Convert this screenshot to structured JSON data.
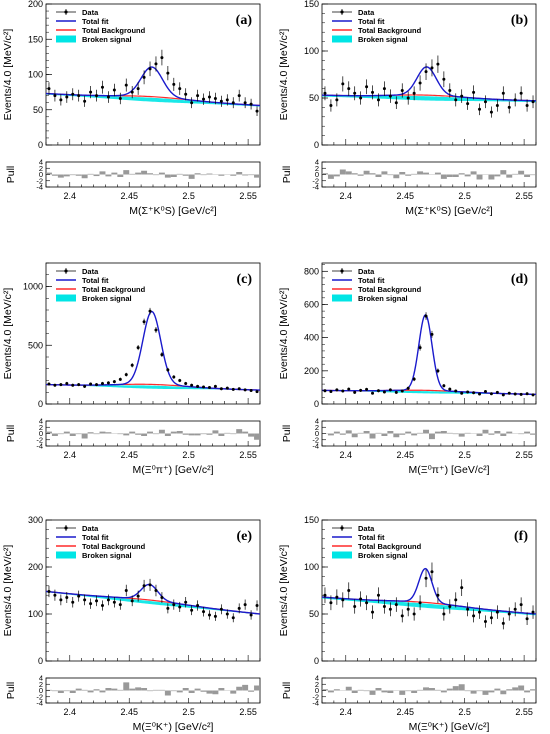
{
  "legend_entries": [
    "Data",
    "Total fit",
    "Total Background",
    "Broken signal"
  ],
  "colors": {
    "data": "#000000",
    "total_fit": "#1a1acc",
    "total_background": "#ff2a2a",
    "broken_signal": "#00e5e5",
    "pull_bars": "#999999"
  },
  "chart_data": [
    {
      "type": "line",
      "panel_label": "(a)",
      "xlabel": "M(Σ⁺K⁰S) [GeV/c²]",
      "ylabel": "Events/4.0 [MeV/c²]",
      "pull_label": "Pull",
      "xlim": [
        2.38,
        2.56
      ],
      "ylim": [
        0,
        200
      ],
      "xticks": [
        "2.4",
        "2.45",
        "2.5",
        "2.55"
      ],
      "yticks": [
        "0",
        "50",
        "100",
        "150",
        "200"
      ],
      "pull_ylim": [
        -4,
        4
      ],
      "pull_yticks": [
        "-4",
        "-2",
        "0",
        "2",
        "4"
      ],
      "peak": {
        "mean": 2.469,
        "sigma": 0.009,
        "amplitude": 42
      },
      "background": {
        "start": 73,
        "end": 56
      },
      "broken_signal_height": 4,
      "data_y": [
        80,
        70,
        64,
        68,
        72,
        70,
        62,
        75,
        70,
        82,
        68,
        78,
        66,
        85,
        75,
        80,
        96,
        108,
        115,
        124,
        102,
        86,
        80,
        72,
        60,
        70,
        65,
        68,
        66,
        62,
        64,
        60,
        70,
        60,
        58,
        48
      ],
      "pulls": [
        0.6,
        -0.4,
        -1.0,
        -0.6,
        -0.2,
        -0.4,
        -1.2,
        0.2,
        -0.5,
        1.0,
        -0.6,
        0.6,
        -0.8,
        1.4,
        0.2,
        0.6,
        1.2,
        0.4,
        -0.2,
        0.6,
        -1.0,
        -0.8,
        0.2,
        -0.4,
        -1.4,
        0.4,
        -0.2,
        0.3,
        0.1,
        -0.4,
        0.0,
        -0.4,
        0.8,
        -0.3,
        -0.2,
        -1.0
      ]
    },
    {
      "type": "line",
      "panel_label": "(b)",
      "xlabel": "M(Σ⁺K⁰S) [GeV/c²]",
      "ylabel": "Events/4.0 [MeV/c²]",
      "pull_label": "Pull",
      "xlim": [
        2.38,
        2.56
      ],
      "ylim": [
        0,
        150
      ],
      "xticks": [
        "2.4",
        "2.45",
        "2.5",
        "2.55"
      ],
      "yticks": [
        "0",
        "50",
        "100",
        "150"
      ],
      "pull_ylim": [
        -4,
        4
      ],
      "pull_yticks": [
        "-4",
        "-2",
        "0",
        "2",
        "4"
      ],
      "peak": {
        "mean": 2.468,
        "sigma": 0.008,
        "amplitude": 30
      },
      "background": {
        "start": 53,
        "end": 47
      },
      "broken_signal_height": 3,
      "data_y": [
        55,
        42,
        48,
        65,
        60,
        55,
        50,
        62,
        56,
        48,
        60,
        52,
        45,
        58,
        50,
        55,
        66,
        78,
        82,
        86,
        70,
        58,
        48,
        52,
        44,
        56,
        38,
        46,
        35,
        42,
        55,
        40,
        48,
        55,
        42,
        46
      ],
      "pulls": [
        0.4,
        -1.4,
        -0.6,
        1.6,
        1.0,
        0.4,
        -0.4,
        1.2,
        0.4,
        -0.8,
        1.0,
        -0.2,
        -1.2,
        0.8,
        -0.4,
        0.2,
        1.0,
        0.6,
        0.0,
        0.6,
        -1.4,
        -0.8,
        -0.8,
        0.4,
        -0.6,
        1.0,
        -1.6,
        0.0,
        -1.6,
        -0.6,
        1.4,
        -1.0,
        0.2,
        1.2,
        -0.8,
        -0.2
      ]
    },
    {
      "type": "line",
      "panel_label": "(c)",
      "xlabel": "M(Ξ⁰π⁺) [GeV/c²]",
      "ylabel": "Events/4.0 [MeV/c²]",
      "pull_label": "Pull",
      "xlim": [
        2.38,
        2.56
      ],
      "ylim": [
        0,
        1200
      ],
      "xticks": [
        "2.4",
        "2.45",
        "2.5",
        "2.55"
      ],
      "yticks": [
        "0",
        "500",
        "1000"
      ],
      "pull_ylim": [
        -4,
        4
      ],
      "pull_yticks": [
        "-4",
        "-2",
        "0",
        "2",
        "4"
      ],
      "peak": {
        "mean": 2.469,
        "sigma": 0.0075,
        "amplitude": 620
      },
      "background": {
        "start": 165,
        "end": 118
      },
      "broken_signal_height": 25,
      "data_y": [
        170,
        160,
        165,
        175,
        160,
        165,
        150,
        170,
        165,
        175,
        180,
        190,
        210,
        250,
        330,
        480,
        700,
        790,
        630,
        420,
        290,
        230,
        200,
        175,
        160,
        150,
        145,
        140,
        150,
        130,
        135,
        125,
        130,
        120,
        115,
        105
      ],
      "pulls": [
        0.6,
        -0.8,
        -0.2,
        0.6,
        -0.8,
        -0.2,
        -1.6,
        0.4,
        -0.2,
        0.6,
        0.4,
        0.0,
        -0.2,
        -0.6,
        0.6,
        -0.4,
        -0.8,
        0.6,
        -0.2,
        1.2,
        -0.8,
        0.6,
        0.8,
        -0.4,
        -0.6,
        -0.6,
        -0.2,
        -0.4,
        1.0,
        -0.8,
        0.2,
        -0.2,
        1.4,
        0.6,
        -1.0,
        -2.0
      ]
    },
    {
      "type": "line",
      "panel_label": "(d)",
      "xlabel": "M(Ξ⁰π⁺) [GeV/c²]",
      "ylabel": "Events/4.0 [MeV/c²]",
      "pull_label": "Pull",
      "xlim": [
        2.38,
        2.56
      ],
      "ylim": [
        0,
        850
      ],
      "xticks": [
        "2.4",
        "2.45",
        "2.5",
        "2.55"
      ],
      "yticks": [
        "0",
        "200",
        "400",
        "600",
        "800"
      ],
      "pull_ylim": [
        -4,
        4
      ],
      "pull_yticks": [
        "-4",
        "-2",
        "0",
        "2",
        "4"
      ],
      "peak": {
        "mean": 2.467,
        "sigma": 0.0055,
        "amplitude": 455
      },
      "background": {
        "start": 82,
        "end": 58
      },
      "broken_signal_height": 12,
      "data_y": [
        80,
        75,
        85,
        78,
        90,
        70,
        82,
        88,
        65,
        80,
        72,
        85,
        70,
        78,
        95,
        150,
        340,
        530,
        420,
        200,
        110,
        90,
        78,
        65,
        72,
        68,
        60,
        75,
        62,
        70,
        55,
        65,
        60,
        58,
        62,
        55
      ],
      "pulls": [
        0.0,
        -0.6,
        0.6,
        -0.4,
        1.0,
        -1.2,
        0.2,
        0.8,
        -1.6,
        0.2,
        -0.8,
        0.8,
        -1.2,
        -0.4,
        0.6,
        -0.6,
        0.2,
        1.2,
        -1.8,
        0.6,
        0.8,
        0.2,
        -0.2,
        -1.0,
        0.2,
        0.0,
        -0.8,
        1.2,
        -0.4,
        0.8,
        -0.8,
        0.6,
        0.0,
        -0.2,
        0.6,
        -0.4
      ]
    },
    {
      "type": "line",
      "panel_label": "(e)",
      "xlabel": "M(Ξ⁰K⁺) [GeV/c²]",
      "ylabel": "Events/4.0 [MeV/c²]",
      "pull_label": "Pull",
      "xlim": [
        2.38,
        2.56
      ],
      "ylim": [
        0,
        300
      ],
      "xticks": [
        "2.4",
        "2.45",
        "2.5",
        "2.55"
      ],
      "yticks": [
        "0",
        "100",
        "200",
        "300"
      ],
      "pull_ylim": [
        -4,
        4
      ],
      "pull_yticks": [
        "-4",
        "-2",
        "0",
        "2",
        "4"
      ],
      "peak": {
        "mean": 2.467,
        "sigma": 0.007,
        "amplitude": 33
      },
      "background": {
        "start": 148,
        "end": 100
      },
      "broken_signal_height": 5,
      "data_y": [
        148,
        140,
        130,
        135,
        125,
        138,
        130,
        122,
        128,
        118,
        130,
        125,
        120,
        150,
        128,
        138,
        160,
        162,
        150,
        135,
        112,
        120,
        115,
        125,
        108,
        118,
        105,
        98,
        95,
        110,
        100,
        92,
        112,
        120,
        98,
        118
      ],
      "pulls": [
        0.2,
        -0.2,
        -0.8,
        -0.2,
        -0.8,
        0.6,
        0.2,
        -0.6,
        0.4,
        -0.6,
        0.8,
        0.6,
        0.2,
        2.6,
        0.6,
        1.0,
        0.8,
        -0.2,
        0.2,
        0.2,
        -1.6,
        -0.2,
        -0.6,
        0.8,
        -0.8,
        0.6,
        -0.4,
        -1.0,
        -1.2,
        0.8,
        0.0,
        -1.0,
        1.2,
        1.8,
        -0.4,
        1.6
      ]
    },
    {
      "type": "line",
      "panel_label": "(f)",
      "xlabel": "M(Ξ⁰K⁺) [GeV/c²]",
      "ylabel": "Events/4.0 [MeV/c²]",
      "pull_label": "Pull",
      "xlim": [
        2.38,
        2.56
      ],
      "ylim": [
        0,
        150
      ],
      "xticks": [
        "2.4",
        "2.45",
        "2.5",
        "2.55"
      ],
      "yticks": [
        "0",
        "50",
        "100",
        "150"
      ],
      "pull_ylim": [
        -4,
        4
      ],
      "pull_yticks": [
        "-4",
        "-2",
        "0",
        "2",
        "4"
      ],
      "peak": {
        "mean": 2.467,
        "sigma": 0.0055,
        "amplitude": 36
      },
      "background": {
        "start": 68,
        "end": 50
      },
      "broken_signal_height": 3,
      "data_y": [
        70,
        62,
        68,
        65,
        75,
        58,
        66,
        62,
        52,
        70,
        58,
        55,
        60,
        48,
        55,
        50,
        62,
        88,
        95,
        70,
        50,
        58,
        65,
        78,
        55,
        48,
        52,
        42,
        46,
        52,
        40,
        50,
        55,
        60,
        45,
        52
      ],
      "pulls": [
        0.4,
        -0.6,
        0.4,
        0.0,
        1.2,
        -0.8,
        0.2,
        -0.2,
        -1.4,
        0.8,
        -0.6,
        -0.8,
        0.0,
        -1.4,
        -0.2,
        -0.8,
        0.2,
        1.0,
        0.8,
        0.2,
        -0.6,
        0.6,
        1.4,
        2.0,
        -0.2,
        -1.0,
        -0.2,
        -1.4,
        -0.6,
        0.6,
        -1.2,
        0.4,
        1.0,
        1.6,
        -0.6,
        0.4
      ]
    }
  ]
}
